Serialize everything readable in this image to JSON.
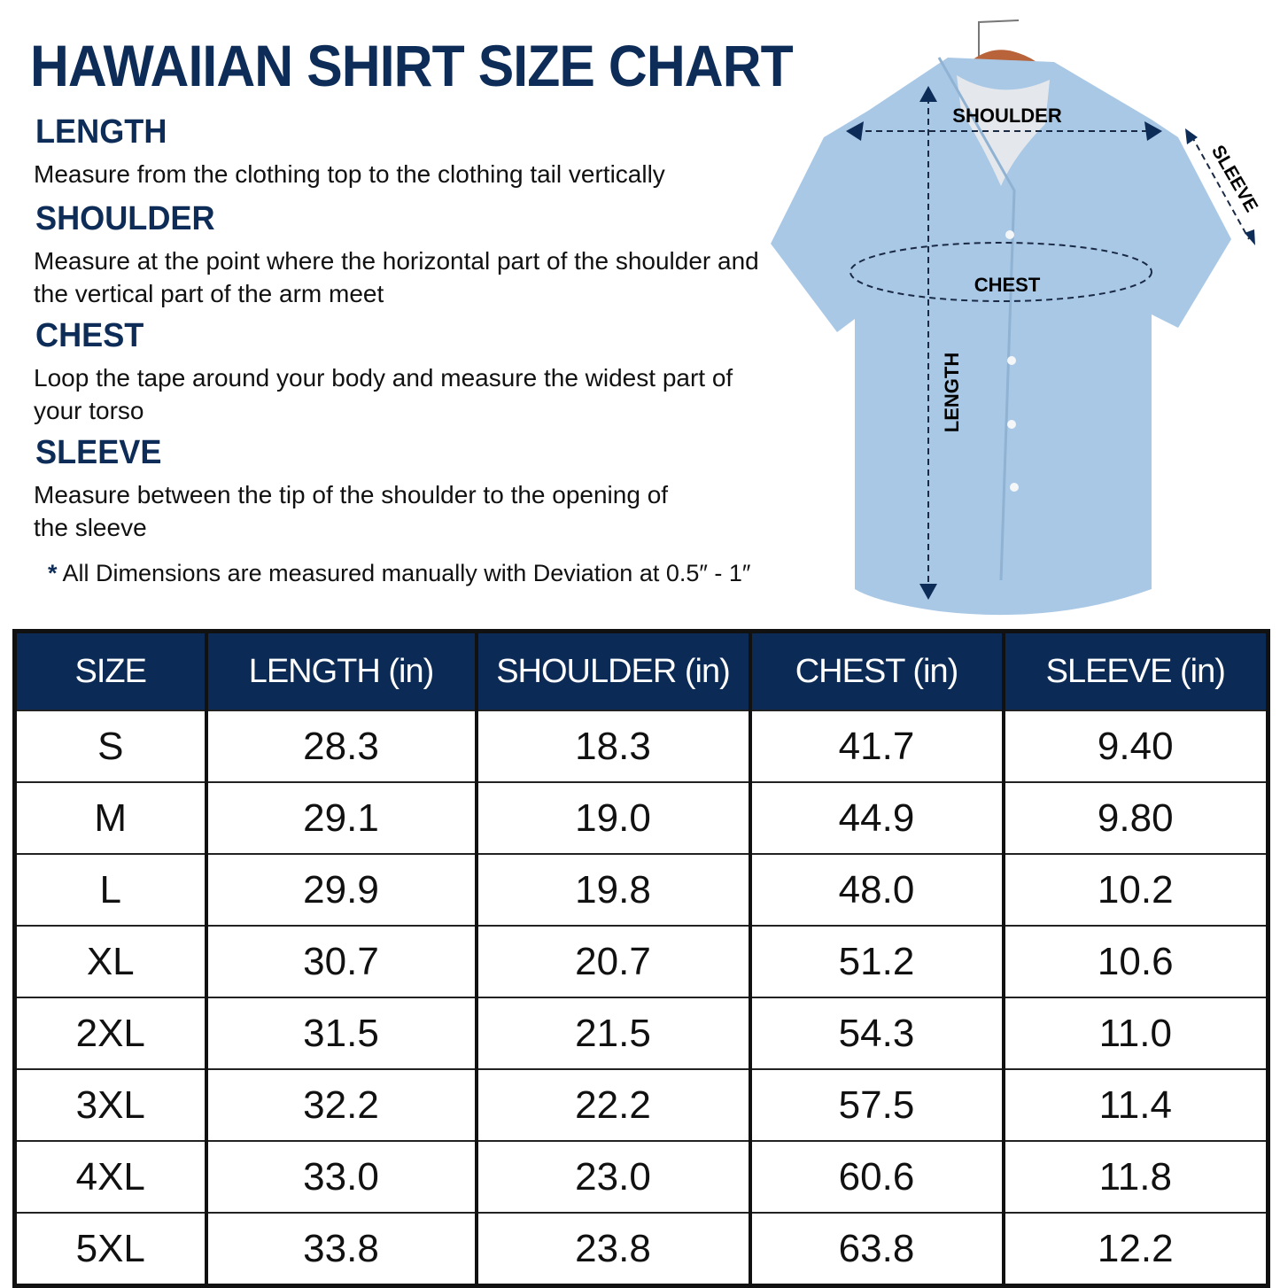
{
  "title": "HAWAIIAN SHIRT SIZE CHART",
  "sections": [
    {
      "heading": "LENGTH",
      "text": "Measure from the clothing top to the clothing tail vertically"
    },
    {
      "heading": "SHOULDER",
      "text": "Measure at the point where the horizontal part of the shoulder and the vertical part of the arm meet"
    },
    {
      "heading": "CHEST",
      "text": "Loop the tape around your body and measure the widest part of your torso"
    },
    {
      "heading": "SLEEVE",
      "text": "Measure between the tip of the shoulder to the opening of the sleeve"
    }
  ],
  "note": {
    "mark": "*",
    "text": "All Dimensions are measured manually with Deviation at 0.5″ - 1″"
  },
  "diagram": {
    "shoulder": "SHOULDER",
    "chest": "CHEST",
    "length": "LENGTH",
    "sleeve": "SLEEVE",
    "shirt_color": "#a9c8e6"
  },
  "colors": {
    "heading": "#0d2c57",
    "table_header": "#0b2a55"
  },
  "table": {
    "headers": [
      "SIZE",
      "LENGTH (in)",
      "SHOULDER (in)",
      "CHEST (in)",
      "SLEEVE (in)"
    ],
    "rows": [
      [
        "S",
        "28.3",
        "18.3",
        "41.7",
        "9.40"
      ],
      [
        "M",
        "29.1",
        "19.0",
        "44.9",
        "9.80"
      ],
      [
        "L",
        "29.9",
        "19.8",
        "48.0",
        "10.2"
      ],
      [
        "XL",
        "30.7",
        "20.7",
        "51.2",
        "10.6"
      ],
      [
        "2XL",
        "31.5",
        "21.5",
        "54.3",
        "11.0"
      ],
      [
        "3XL",
        "32.2",
        "22.2",
        "57.5",
        "11.4"
      ],
      [
        "4XL",
        "33.0",
        "23.0",
        "60.6",
        "11.8"
      ],
      [
        "5XL",
        "33.8",
        "23.8",
        "63.8",
        "12.2"
      ]
    ]
  }
}
